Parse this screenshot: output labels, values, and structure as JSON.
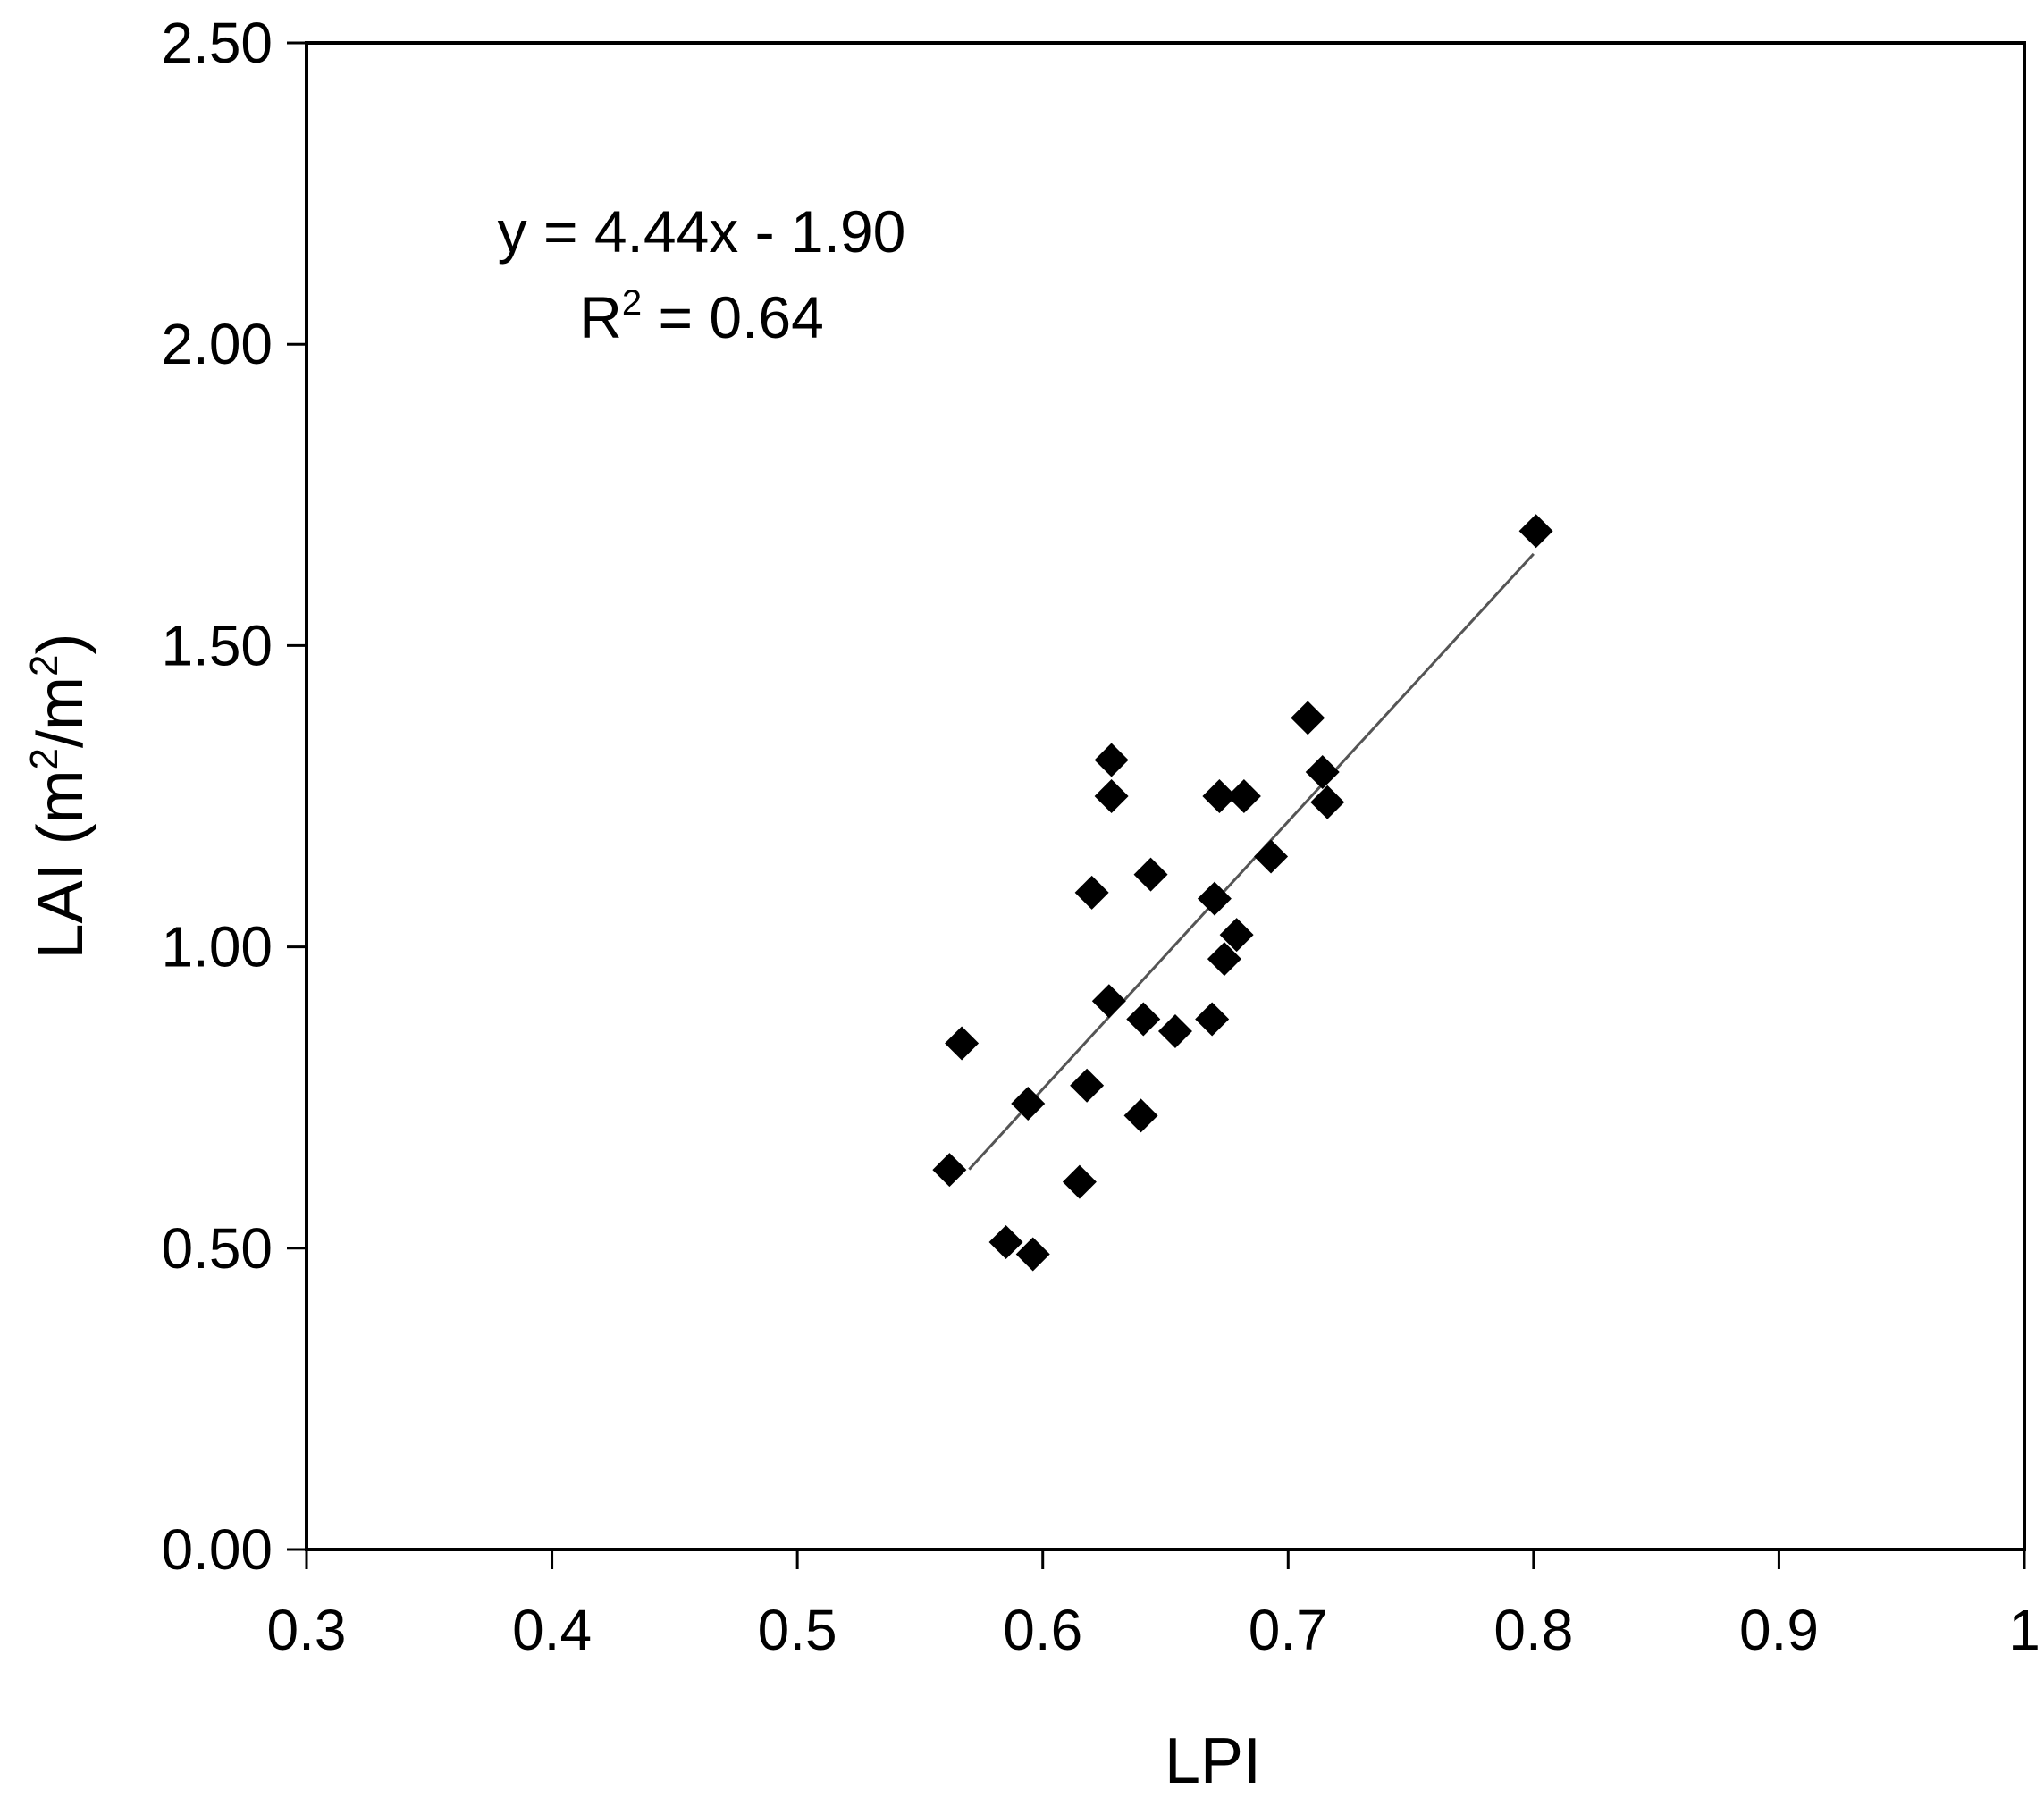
{
  "chart_data": {
    "type": "scatter",
    "xlabel": "LPI",
    "ylabel_main": "LAI (m",
    "ylabel_sup1": "2",
    "ylabel_mid": "/m",
    "ylabel_sup2": "2",
    "ylabel_end": ")",
    "xlim": [
      0.3,
      1.0
    ],
    "ylim": [
      0.0,
      2.5
    ],
    "x_ticks": [
      "0.3",
      "0.4",
      "0.5",
      "0.6",
      "0.7",
      "0.8",
      "0.9",
      "1"
    ],
    "y_ticks": [
      "0.00",
      "0.50",
      "1.00",
      "1.50",
      "2.00",
      "2.50"
    ],
    "grid": false,
    "marker": "diamond",
    "marker_color": "#000000",
    "trendline_color": "#555555",
    "equation": "y = 4.44x - 1.90",
    "r2_prefix": "R",
    "r2_sup": "2",
    "r2_suffix": " = 0.64",
    "trendline": {
      "slope": 4.44,
      "intercept": -1.9,
      "x_range": [
        0.57,
        0.8
      ]
    },
    "points": [
      {
        "x": 0.562,
        "y": 0.63
      },
      {
        "x": 0.567,
        "y": 0.84
      },
      {
        "x": 0.585,
        "y": 0.51
      },
      {
        "x": 0.594,
        "y": 0.74
      },
      {
        "x": 0.596,
        "y": 0.49
      },
      {
        "x": 0.615,
        "y": 0.61
      },
      {
        "x": 0.618,
        "y": 0.77
      },
      {
        "x": 0.62,
        "y": 1.09
      },
      {
        "x": 0.627,
        "y": 0.91
      },
      {
        "x": 0.628,
        "y": 1.25
      },
      {
        "x": 0.628,
        "y": 1.31
      },
      {
        "x": 0.64,
        "y": 0.72
      },
      {
        "x": 0.641,
        "y": 0.88
      },
      {
        "x": 0.644,
        "y": 1.12
      },
      {
        "x": 0.654,
        "y": 0.86
      },
      {
        "x": 0.669,
        "y": 0.88
      },
      {
        "x": 0.67,
        "y": 1.08
      },
      {
        "x": 0.672,
        "y": 1.25
      },
      {
        "x": 0.674,
        "y": 0.98
      },
      {
        "x": 0.679,
        "y": 1.02
      },
      {
        "x": 0.682,
        "y": 1.25
      },
      {
        "x": 0.693,
        "y": 1.15
      },
      {
        "x": 0.708,
        "y": 1.38
      },
      {
        "x": 0.714,
        "y": 1.29
      },
      {
        "x": 0.716,
        "y": 1.24
      },
      {
        "x": 0.801,
        "y": 1.69
      }
    ]
  }
}
